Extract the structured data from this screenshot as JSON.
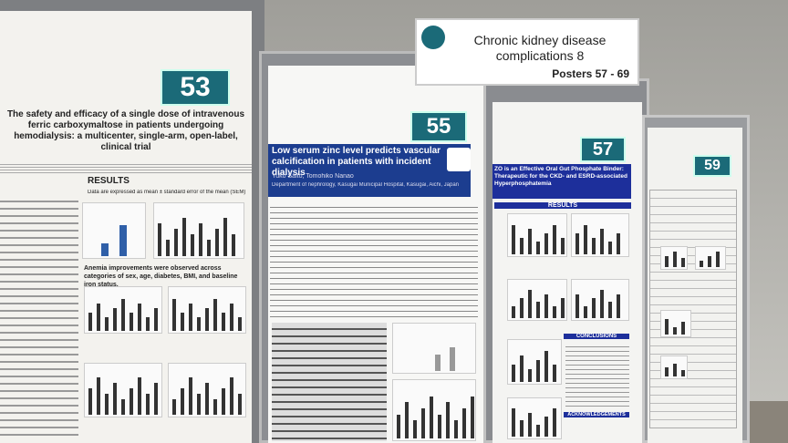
{
  "sign": {
    "title": "Chronic kidney disease complications 8",
    "range": "Posters 57 - 69"
  },
  "posters": [
    {
      "number": "53",
      "title": "The safety and efficacy of a single dose of intravenous ferric carboxymaltose in patients undergoing hemodialysis: a multicenter, single-arm, open-label, clinical trial",
      "heading": "RESULTS",
      "note": "Data are expressed as mean ± standard error of the mean (SEM)",
      "finding": "Anemia improvements were observed across categories of sex, age, diabetes, BMI, and baseline iron status."
    },
    {
      "number": "55",
      "title": "Low serum zinc level predicts vascular calcification in patients with incident dialysis",
      "authors": "Yuko Saito, Tomohiko Nanao",
      "affiliation": "Department of nephrology, Kasugai Municipal Hospital, Kasugai, Aichi, Japan"
    },
    {
      "number": "57",
      "title": "ZO is an Effective Oral Gut Phosphate Binder: Therapeutic for the CKD- and ESRD-associated Hyperphosphatemia",
      "headings": [
        "RESULTS",
        "CONCLUSIONS",
        "ACKNOWLEDGEMENTS"
      ]
    },
    {
      "number": "59"
    }
  ]
}
